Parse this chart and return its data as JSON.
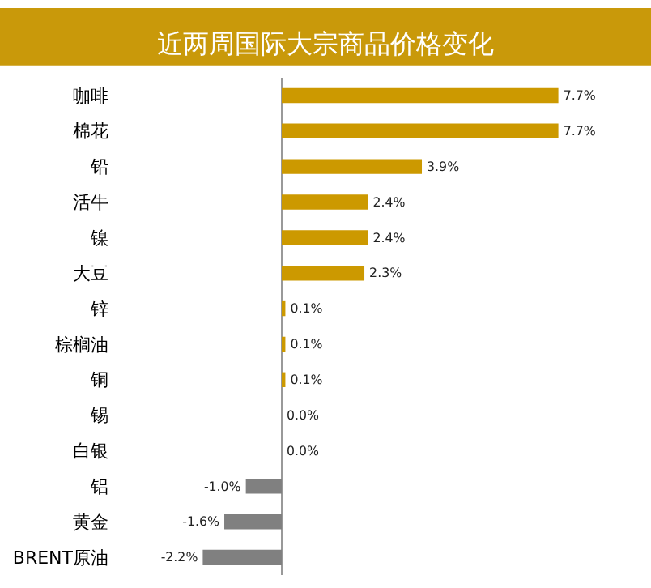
{
  "chart_data": {
    "type": "bar",
    "orientation": "horizontal",
    "title": "近两周国际大宗商品价格变化",
    "categories": [
      "咖啡",
      "棉花",
      "铅",
      "活牛",
      "镍",
      "大豆",
      "锌",
      "棕榈油",
      "铜",
      "锡",
      "白银",
      "铝",
      "黄金",
      "BRENT原油"
    ],
    "values": [
      7.7,
      7.7,
      3.9,
      2.4,
      2.4,
      2.3,
      0.1,
      0.1,
      0.1,
      0.0,
      0.0,
      -1.0,
      -1.6,
      -2.2
    ],
    "value_labels": [
      "7.7%",
      "7.7%",
      "3.9%",
      "2.4%",
      "2.4%",
      "2.3%",
      "0.1%",
      "0.1%",
      "0.1%",
      "0.0%",
      "0.0%",
      "-1.0%",
      "-1.6%",
      "-2.2%"
    ],
    "colors": [
      "#cc9900",
      "#cc9900",
      "#cc9900",
      "#cc9900",
      "#cc9900",
      "#cc9900",
      "#cc9900",
      "#cc9900",
      "#cc9900",
      "#cc9900",
      "#cc9900",
      "#808080",
      "#808080",
      "#808080"
    ],
    "legend": false
  }
}
